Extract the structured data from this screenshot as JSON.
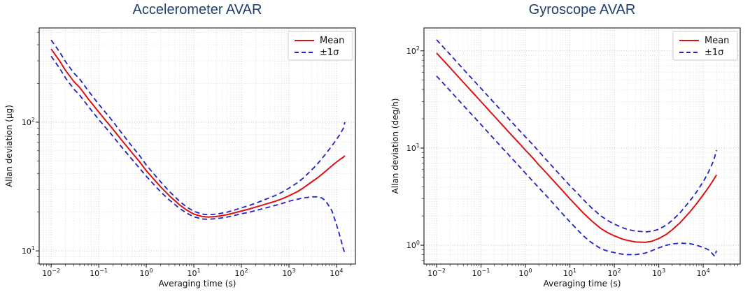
{
  "styles": {
    "background": "#ffffff",
    "title_color": "#1f3e6e",
    "mean_color": "#dd1111",
    "sigma_color": "#2020c8",
    "grid_major_color": "#b3b3b3",
    "grid_minor_color": "#d7d7d7",
    "spine_color": "#2b2b2b",
    "tick_color": "#222222",
    "tick_label_color": "#111111",
    "legend_border_color": "#cccccc",
    "legend_bg_color": "#ffffff"
  },
  "chart_data": [
    {
      "type": "line",
      "name": "accelerometer-avar",
      "title": "Accelerometer AVAR",
      "xlabel": "Averaging time (s)",
      "ylabel": "Allan deviation (μg)",
      "xscale": "log",
      "yscale": "log",
      "grid": "both, dotted",
      "xlim": [
        0.0056,
        25000
      ],
      "ylim": [
        7.9,
        540
      ],
      "xticks": [
        0.01,
        0.1,
        1,
        10,
        100,
        1000,
        10000
      ],
      "yticks": [
        10,
        100
      ],
      "legend": {
        "position": "upper right",
        "entries": [
          {
            "label": "Mean",
            "color": "#dd1111",
            "dash": "none"
          },
          {
            "label": "±1σ",
            "color": "#2020c8",
            "dash": "7 4.5"
          }
        ]
      },
      "series": [
        {
          "name": "Mean",
          "color": "#dd1111",
          "dash": "none",
          "width": 2,
          "x": [
            0.01,
            0.015,
            0.02,
            0.03,
            0.04,
            0.06,
            0.1,
            0.15,
            0.2,
            0.3,
            0.5,
            0.7,
            1,
            1.5,
            2,
            3,
            5,
            7,
            10,
            15,
            20,
            30,
            50,
            70,
            100,
            150,
            200,
            300,
            500,
            700,
            1000,
            1500,
            2000,
            3000,
            4000,
            5000,
            6000,
            8000,
            10000,
            12000,
            14000,
            15000
          ],
          "y": [
            370,
            300,
            253,
            207,
            186,
            152,
            120,
            100,
            88,
            73,
            58,
            50,
            42,
            35.5,
            31.5,
            27,
            22.8,
            20.8,
            19.3,
            18.5,
            18.3,
            18.5,
            19.1,
            19.7,
            20.4,
            21.2,
            21.9,
            22.9,
            24.2,
            25.3,
            26.8,
            28.8,
            30.8,
            34.3,
            37,
            39.5,
            41.8,
            45.8,
            49,
            51.5,
            53.5,
            55
          ]
        },
        {
          "name": "+1σ",
          "color": "#2020c8",
          "dash": "7 4.5",
          "width": 1.8,
          "x": [
            0.01,
            0.015,
            0.02,
            0.03,
            0.04,
            0.06,
            0.1,
            0.15,
            0.2,
            0.3,
            0.5,
            0.7,
            1,
            1.5,
            2,
            3,
            5,
            7,
            10,
            15,
            20,
            30,
            50,
            70,
            100,
            150,
            200,
            300,
            500,
            700,
            1000,
            1500,
            2000,
            3000,
            4000,
            5000,
            6000,
            8000,
            10000,
            12000,
            14000,
            15000
          ],
          "y": [
            435,
            352,
            296,
            241,
            216,
            176,
            138,
            115,
            101,
            83,
            65,
            56,
            46.5,
            39,
            34.5,
            29.2,
            24.3,
            22,
            20.3,
            19.3,
            19.1,
            19.3,
            20,
            20.7,
            21.6,
            22.6,
            23.5,
            24.9,
            26.8,
            28.4,
            30.7,
            33.8,
            36.8,
            42.5,
            47.5,
            52.5,
            57,
            65.5,
            73.5,
            81,
            90,
            100
          ]
        },
        {
          "name": "−1σ",
          "color": "#2020c8",
          "dash": "7 4.5",
          "width": 1.8,
          "x": [
            0.01,
            0.015,
            0.02,
            0.03,
            0.04,
            0.06,
            0.1,
            0.15,
            0.2,
            0.3,
            0.5,
            0.7,
            1,
            1.5,
            2,
            3,
            5,
            7,
            10,
            15,
            20,
            30,
            50,
            70,
            100,
            150,
            200,
            300,
            500,
            700,
            1000,
            1500,
            2000,
            3000,
            4000,
            5000,
            6000,
            8000,
            10000,
            12000,
            14000,
            15000
          ],
          "y": [
            326,
            263,
            221,
            181,
            162,
            133,
            105,
            88,
            77.5,
            64.5,
            51.5,
            44.5,
            38,
            32.3,
            28.8,
            25,
            21.4,
            19.7,
            18.4,
            17.7,
            17.6,
            17.8,
            18.3,
            18.8,
            19.4,
            20,
            20.6,
            21.4,
            22.5,
            23.3,
            24.3,
            25.2,
            25.8,
            26.3,
            26.3,
            25.7,
            24.3,
            20.5,
            16,
            12.8,
            10.3,
            9.6
          ]
        }
      ]
    },
    {
      "type": "line",
      "name": "gyroscope-avar",
      "title": "Gyroscope AVAR",
      "xlabel": "Averaging time (s)",
      "ylabel": "Allan deviation (deg/h)",
      "xscale": "log",
      "yscale": "log",
      "grid": "both, dotted",
      "xlim": [
        0.0052,
        68000
      ],
      "ylim": [
        0.64,
        172
      ],
      "xticks": [
        0.01,
        0.1,
        1,
        10,
        100,
        1000,
        10000
      ],
      "yticks": [
        1,
        10,
        100
      ],
      "legend": {
        "position": "upper right",
        "entries": [
          {
            "label": "Mean",
            "color": "#dd1111",
            "dash": "none"
          },
          {
            "label": "±1σ",
            "color": "#2020c8",
            "dash": "7 4.5"
          }
        ]
      },
      "series": [
        {
          "name": "Mean",
          "color": "#dd1111",
          "dash": "none",
          "width": 2,
          "x": [
            0.01,
            0.015,
            0.02,
            0.03,
            0.05,
            0.07,
            0.1,
            0.15,
            0.2,
            0.3,
            0.5,
            0.7,
            1,
            1.5,
            2,
            3,
            5,
            7,
            10,
            15,
            20,
            30,
            50,
            70,
            100,
            150,
            200,
            300,
            500,
            700,
            1000,
            1500,
            2000,
            3000,
            5000,
            7000,
            10000,
            13000,
            16000,
            18000,
            20000
          ],
          "y": [
            95,
            77.6,
            67.2,
            54.9,
            42.5,
            35.9,
            30,
            24.5,
            21.2,
            17.3,
            13.4,
            11.4,
            9.5,
            7.8,
            6.7,
            5.5,
            4.25,
            3.6,
            3.0,
            2.47,
            2.15,
            1.8,
            1.48,
            1.35,
            1.25,
            1.16,
            1.12,
            1.08,
            1.07,
            1.1,
            1.17,
            1.3,
            1.44,
            1.7,
            2.2,
            2.65,
            3.3,
            3.9,
            4.5,
            4.9,
            5.3
          ]
        },
        {
          "name": "+1σ",
          "color": "#2020c8",
          "dash": "7 4.5",
          "width": 1.8,
          "x": [
            0.01,
            0.015,
            0.02,
            0.03,
            0.05,
            0.07,
            0.1,
            0.15,
            0.2,
            0.3,
            0.5,
            0.7,
            1,
            1.5,
            2,
            3,
            5,
            7,
            10,
            15,
            20,
            30,
            50,
            70,
            100,
            150,
            200,
            300,
            500,
            700,
            1000,
            1500,
            2000,
            3000,
            5000,
            7000,
            10000,
            13000,
            16000,
            18000,
            20000
          ],
          "y": [
            130,
            106,
            92,
            75,
            58,
            49,
            41,
            33.5,
            29,
            23.7,
            18.4,
            15.5,
            13,
            10.7,
            9.2,
            7.5,
            5.8,
            4.9,
            4.1,
            3.4,
            2.95,
            2.45,
            2.0,
            1.8,
            1.65,
            1.52,
            1.45,
            1.4,
            1.37,
            1.39,
            1.46,
            1.62,
            1.8,
            2.15,
            2.85,
            3.5,
            4.5,
            5.6,
            6.9,
            8.0,
            9.5
          ]
        },
        {
          "name": "−1σ",
          "color": "#2020c8",
          "dash": "7 4.5",
          "width": 1.8,
          "x": [
            0.01,
            0.015,
            0.02,
            0.03,
            0.05,
            0.07,
            0.1,
            0.15,
            0.2,
            0.3,
            0.5,
            0.7,
            1,
            1.5,
            2,
            3,
            5,
            7,
            10,
            15,
            20,
            30,
            50,
            70,
            100,
            150,
            200,
            300,
            500,
            700,
            1000,
            1500,
            2000,
            3000,
            5000,
            7000,
            10000,
            13000,
            16000,
            18000,
            20000
          ],
          "y": [
            55,
            45,
            39,
            31.8,
            24.6,
            20.8,
            17.4,
            14.2,
            12.3,
            10,
            7.8,
            6.6,
            5.5,
            4.5,
            3.9,
            3.2,
            2.47,
            2.08,
            1.74,
            1.43,
            1.25,
            1.07,
            0.92,
            0.87,
            0.84,
            0.81,
            0.8,
            0.8,
            0.83,
            0.88,
            0.94,
            1.0,
            1.03,
            1.05,
            1.04,
            1.0,
            0.95,
            0.9,
            0.82,
            0.77,
            0.88
          ]
        }
      ]
    }
  ]
}
